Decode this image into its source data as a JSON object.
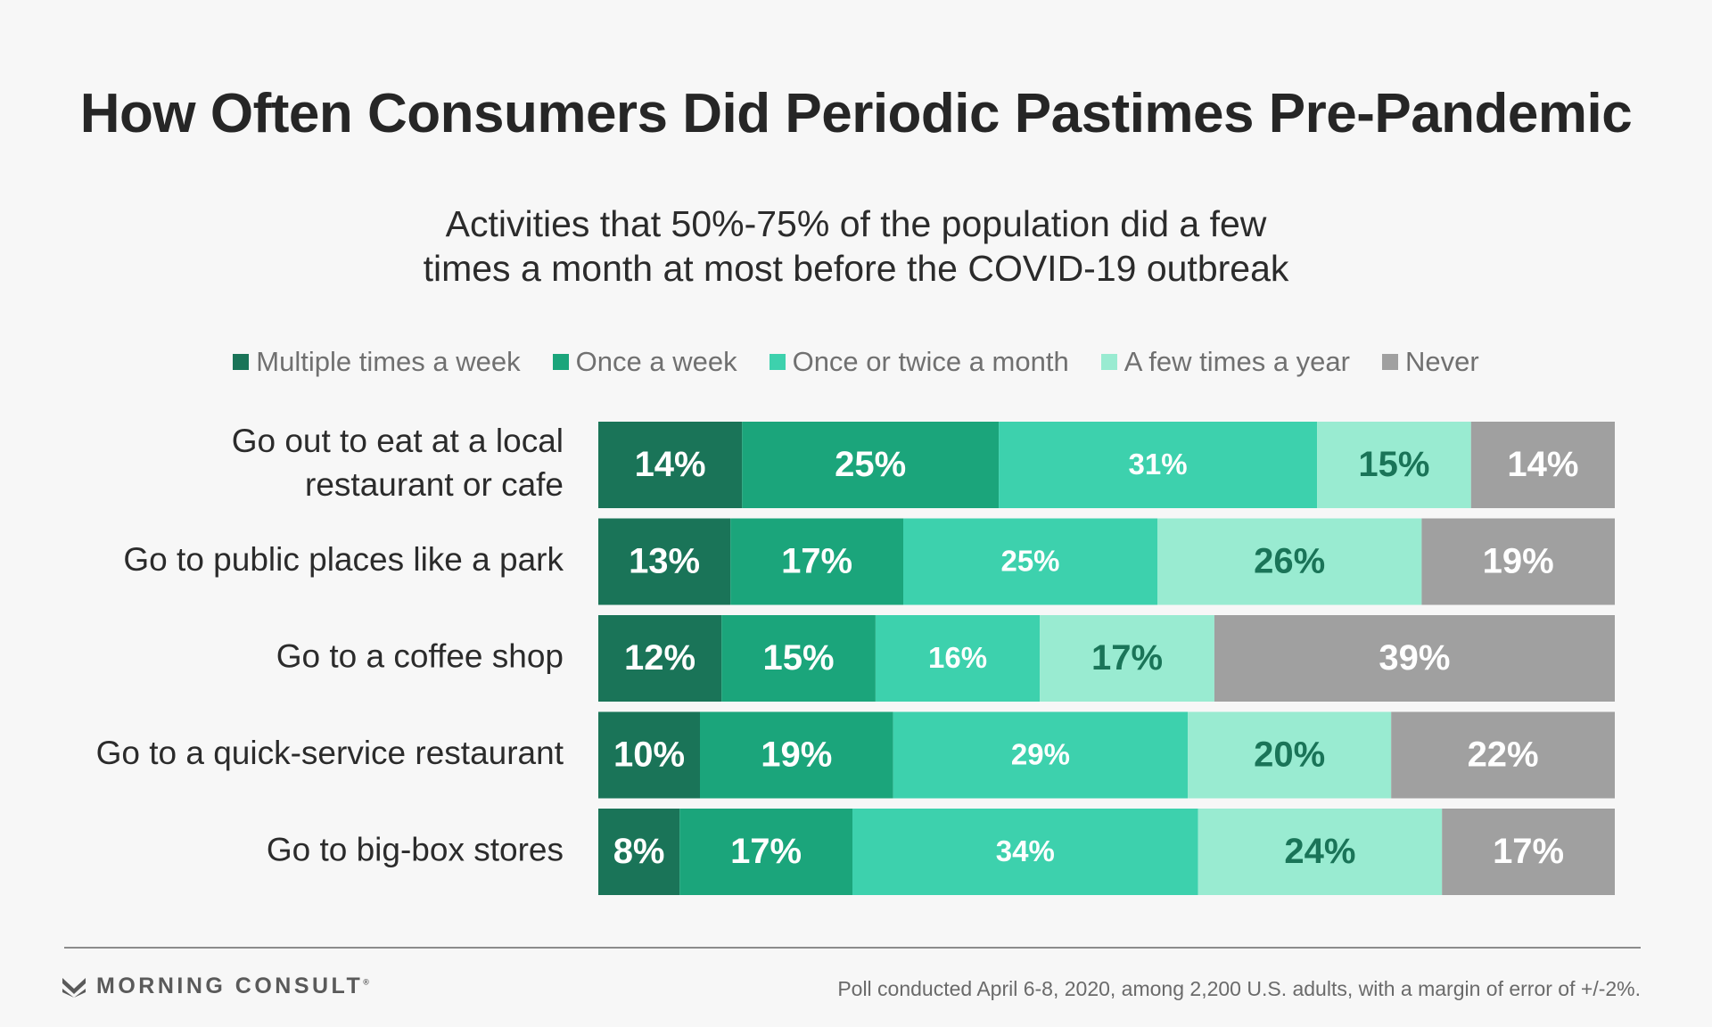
{
  "title": "How Often Consumers Did Periodic Pastimes Pre-Pandemic",
  "subtitle_line1": "Activities that 50%-75% of the population did a few",
  "subtitle_line2": "times a month at most before the COVID-19 outbreak",
  "brand": {
    "name": "MORNING CONSULT",
    "mark": "®"
  },
  "footnote": "Poll conducted April 6-8, 2020, among 2,200 U.S. adults, with a margin of error of +/-2%.",
  "colors": {
    "multiple_week": "#1a7458",
    "once_week": "#1ba57b",
    "once_twice_month": "#3dd1ad",
    "few_year": "#99ebd1",
    "never": "#a0a0a0",
    "label_dark": "#1a7458",
    "label_light": "#ffffff"
  },
  "chart_data": {
    "type": "bar",
    "orientation": "horizontal",
    "stacked": true,
    "normalized": true,
    "legend_position": "top",
    "categories": [
      [
        "Go out to eat at a local",
        "restaurant or cafe"
      ],
      [
        "Go to public places like a park"
      ],
      [
        "Go to a coffee shop"
      ],
      [
        "Go to a quick-service restaurant"
      ],
      [
        "Go to big-box stores"
      ]
    ],
    "series": [
      {
        "name": "Multiple times a week",
        "color": "#1a7458",
        "label_color": "#ffffff",
        "values": [
          14,
          13,
          12,
          10,
          8
        ]
      },
      {
        "name": "Once a week",
        "color": "#1ba57b",
        "label_color": "#ffffff",
        "values": [
          25,
          17,
          15,
          19,
          17
        ]
      },
      {
        "name": "Once or twice a month",
        "color": "#3dd1ad",
        "label_color": "#ffffff",
        "values": [
          31,
          25,
          16,
          29,
          34
        ]
      },
      {
        "name": "A few times a year",
        "color": "#99ebd1",
        "label_color": "#1a7458",
        "values": [
          15,
          26,
          17,
          20,
          24
        ]
      },
      {
        "name": "Never",
        "color": "#a0a0a0",
        "label_color": "#ffffff",
        "values": [
          14,
          19,
          39,
          22,
          17
        ]
      }
    ],
    "value_suffix": "%",
    "xlabel": "",
    "ylabel": ""
  }
}
